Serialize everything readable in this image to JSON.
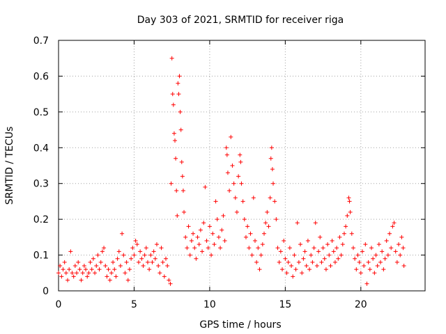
{
  "chart_data": {
    "type": "scatter",
    "title": "Day 303 of 2021, SRMTID for receiver riga",
    "xlabel": "GPS time / hours",
    "ylabel": "SRMTID / TECUs",
    "xlim": [
      0,
      24.25
    ],
    "ylim": [
      0,
      0.7
    ],
    "xticks": [
      "0",
      "5",
      "10",
      "15",
      "20"
    ],
    "yticks": [
      "0",
      "0.1",
      "0.2",
      "0.3",
      "0.4",
      "0.5",
      "0.6",
      "0.7"
    ],
    "grid": true,
    "marker": "+",
    "color": "#ff0000",
    "series": [
      {
        "name": "SRMTID",
        "points": [
          [
            0.0,
            0.05
          ],
          [
            0.1,
            0.07
          ],
          [
            0.2,
            0.04
          ],
          [
            0.3,
            0.06
          ],
          [
            0.4,
            0.08
          ],
          [
            0.5,
            0.05
          ],
          [
            0.6,
            0.03
          ],
          [
            0.7,
            0.06
          ],
          [
            0.8,
            0.11
          ],
          [
            0.9,
            0.05
          ],
          [
            1.0,
            0.04
          ],
          [
            1.1,
            0.07
          ],
          [
            1.2,
            0.05
          ],
          [
            1.3,
            0.08
          ],
          [
            1.4,
            0.06
          ],
          [
            1.5,
            0.03
          ],
          [
            1.6,
            0.05
          ],
          [
            1.7,
            0.07
          ],
          [
            1.8,
            0.06
          ],
          [
            1.9,
            0.04
          ],
          [
            2.0,
            0.05
          ],
          [
            2.1,
            0.08
          ],
          [
            2.2,
            0.06
          ],
          [
            2.3,
            0.09
          ],
          [
            2.4,
            0.05
          ],
          [
            2.5,
            0.07
          ],
          [
            2.6,
            0.1
          ],
          [
            2.7,
            0.06
          ],
          [
            2.8,
            0.08
          ],
          [
            2.9,
            0.11
          ],
          [
            3.0,
            0.12
          ],
          [
            3.1,
            0.07
          ],
          [
            3.2,
            0.04
          ],
          [
            3.3,
            0.06
          ],
          [
            3.4,
            0.03
          ],
          [
            3.5,
            0.05
          ],
          [
            3.6,
            0.08
          ],
          [
            3.7,
            0.06
          ],
          [
            3.8,
            0.04
          ],
          [
            3.9,
            0.09
          ],
          [
            4.0,
            0.11
          ],
          [
            4.1,
            0.07
          ],
          [
            4.2,
            0.16
          ],
          [
            4.3,
            0.1
          ],
          [
            4.4,
            0.05
          ],
          [
            4.5,
            0.08
          ],
          [
            4.6,
            0.03
          ],
          [
            4.7,
            0.06
          ],
          [
            4.8,
            0.09
          ],
          [
            4.9,
            0.12
          ],
          [
            5.0,
            0.1
          ],
          [
            5.1,
            0.14
          ],
          [
            5.2,
            0.13
          ],
          [
            5.3,
            0.08
          ],
          [
            5.4,
            0.11
          ],
          [
            5.5,
            0.09
          ],
          [
            5.6,
            0.07
          ],
          [
            5.7,
            0.1
          ],
          [
            5.8,
            0.12
          ],
          [
            5.9,
            0.08
          ],
          [
            6.0,
            0.06
          ],
          [
            6.1,
            0.1
          ],
          [
            6.2,
            0.08
          ],
          [
            6.3,
            0.11
          ],
          [
            6.4,
            0.09
          ],
          [
            6.5,
            0.13
          ],
          [
            6.6,
            0.07
          ],
          [
            6.7,
            0.05
          ],
          [
            6.8,
            0.12
          ],
          [
            6.9,
            0.08
          ],
          [
            7.0,
            0.04
          ],
          [
            7.1,
            0.09
          ],
          [
            7.2,
            0.07
          ],
          [
            7.3,
            0.03
          ],
          [
            7.4,
            0.02
          ],
          [
            7.45,
            0.3
          ],
          [
            7.5,
            0.65
          ],
          [
            7.55,
            0.55
          ],
          [
            7.6,
            0.52
          ],
          [
            7.65,
            0.44
          ],
          [
            7.7,
            0.42
          ],
          [
            7.75,
            0.37
          ],
          [
            7.8,
            0.28
          ],
          [
            7.85,
            0.21
          ],
          [
            7.9,
            0.58
          ],
          [
            7.95,
            0.55
          ],
          [
            8.0,
            0.6
          ],
          [
            8.05,
            0.5
          ],
          [
            8.1,
            0.45
          ],
          [
            8.15,
            0.36
          ],
          [
            8.2,
            0.32
          ],
          [
            8.25,
            0.28
          ],
          [
            8.3,
            0.22
          ],
          [
            8.4,
            0.15
          ],
          [
            8.5,
            0.12
          ],
          [
            8.6,
            0.18
          ],
          [
            8.7,
            0.1
          ],
          [
            8.8,
            0.14
          ],
          [
            8.9,
            0.16
          ],
          [
            9.0,
            0.12
          ],
          [
            9.1,
            0.09
          ],
          [
            9.2,
            0.15
          ],
          [
            9.3,
            0.13
          ],
          [
            9.4,
            0.17
          ],
          [
            9.5,
            0.11
          ],
          [
            9.6,
            0.19
          ],
          [
            9.7,
            0.29
          ],
          [
            9.8,
            0.14
          ],
          [
            9.9,
            0.12
          ],
          [
            10.0,
            0.18
          ],
          [
            10.1,
            0.1
          ],
          [
            10.2,
            0.16
          ],
          [
            10.3,
            0.13
          ],
          [
            10.4,
            0.25
          ],
          [
            10.5,
            0.2
          ],
          [
            10.6,
            0.15
          ],
          [
            10.7,
            0.12
          ],
          [
            10.8,
            0.17
          ],
          [
            10.9,
            0.21
          ],
          [
            11.0,
            0.14
          ],
          [
            11.1,
            0.4
          ],
          [
            11.15,
            0.38
          ],
          [
            11.2,
            0.33
          ],
          [
            11.3,
            0.28
          ],
          [
            11.4,
            0.43
          ],
          [
            11.5,
            0.35
          ],
          [
            11.6,
            0.3
          ],
          [
            11.7,
            0.26
          ],
          [
            11.8,
            0.22
          ],
          [
            11.9,
            0.32
          ],
          [
            12.0,
            0.38
          ],
          [
            12.05,
            0.36
          ],
          [
            12.1,
            0.3
          ],
          [
            12.2,
            0.25
          ],
          [
            12.3,
            0.2
          ],
          [
            12.4,
            0.15
          ],
          [
            12.5,
            0.18
          ],
          [
            12.6,
            0.12
          ],
          [
            12.7,
            0.16
          ],
          [
            12.8,
            0.1
          ],
          [
            12.9,
            0.26
          ],
          [
            13.0,
            0.14
          ],
          [
            13.1,
            0.08
          ],
          [
            13.2,
            0.12
          ],
          [
            13.3,
            0.06
          ],
          [
            13.4,
            0.1
          ],
          [
            13.5,
            0.13
          ],
          [
            13.6,
            0.16
          ],
          [
            13.7,
            0.19
          ],
          [
            13.8,
            0.22
          ],
          [
            13.9,
            0.18
          ],
          [
            14.0,
            0.26
          ],
          [
            14.05,
            0.37
          ],
          [
            14.1,
            0.4
          ],
          [
            14.15,
            0.34
          ],
          [
            14.2,
            0.3
          ],
          [
            14.3,
            0.25
          ],
          [
            14.4,
            0.2
          ],
          [
            14.5,
            0.12
          ],
          [
            14.6,
            0.08
          ],
          [
            14.7,
            0.11
          ],
          [
            14.8,
            0.06
          ],
          [
            14.9,
            0.14
          ],
          [
            15.0,
            0.09
          ],
          [
            15.1,
            0.05
          ],
          [
            15.2,
            0.08
          ],
          [
            15.3,
            0.12
          ],
          [
            15.4,
            0.07
          ],
          [
            15.5,
            0.04
          ],
          [
            15.6,
            0.1
          ],
          [
            15.7,
            0.06
          ],
          [
            15.8,
            0.19
          ],
          [
            15.9,
            0.08
          ],
          [
            16.0,
            0.13
          ],
          [
            16.1,
            0.05
          ],
          [
            16.2,
            0.09
          ],
          [
            16.3,
            0.11
          ],
          [
            16.4,
            0.07
          ],
          [
            16.5,
            0.14
          ],
          [
            16.6,
            0.06
          ],
          [
            16.7,
            0.1
          ],
          [
            16.8,
            0.08
          ],
          [
            16.9,
            0.12
          ],
          [
            17.0,
            0.19
          ],
          [
            17.1,
            0.07
          ],
          [
            17.2,
            0.11
          ],
          [
            17.3,
            0.15
          ],
          [
            17.4,
            0.08
          ],
          [
            17.5,
            0.12
          ],
          [
            17.6,
            0.09
          ],
          [
            17.7,
            0.06
          ],
          [
            17.8,
            0.13
          ],
          [
            17.9,
            0.1
          ],
          [
            18.0,
            0.07
          ],
          [
            18.1,
            0.14
          ],
          [
            18.2,
            0.11
          ],
          [
            18.3,
            0.08
          ],
          [
            18.4,
            0.12
          ],
          [
            18.5,
            0.09
          ],
          [
            18.6,
            0.15
          ],
          [
            18.7,
            0.1
          ],
          [
            18.8,
            0.13
          ],
          [
            18.9,
            0.16
          ],
          [
            19.0,
            0.18
          ],
          [
            19.1,
            0.21
          ],
          [
            19.2,
            0.26
          ],
          [
            19.25,
            0.25
          ],
          [
            19.3,
            0.22
          ],
          [
            19.4,
            0.16
          ],
          [
            19.5,
            0.12
          ],
          [
            19.6,
            0.09
          ],
          [
            19.7,
            0.06
          ],
          [
            19.8,
            0.1
          ],
          [
            19.9,
            0.08
          ],
          [
            20.0,
            0.05
          ],
          [
            20.1,
            0.11
          ],
          [
            20.2,
            0.07
          ],
          [
            20.3,
            0.13
          ],
          [
            20.4,
            0.02
          ],
          [
            20.5,
            0.08
          ],
          [
            20.6,
            0.06
          ],
          [
            20.7,
            0.12
          ],
          [
            20.8,
            0.09
          ],
          [
            20.9,
            0.05
          ],
          [
            21.0,
            0.1
          ],
          [
            21.1,
            0.07
          ],
          [
            21.2,
            0.13
          ],
          [
            21.3,
            0.08
          ],
          [
            21.4,
            0.11
          ],
          [
            21.5,
            0.06
          ],
          [
            21.6,
            0.09
          ],
          [
            21.7,
            0.14
          ],
          [
            21.8,
            0.1
          ],
          [
            21.9,
            0.16
          ],
          [
            22.0,
            0.12
          ],
          [
            22.1,
            0.18
          ],
          [
            22.2,
            0.19
          ],
          [
            22.3,
            0.11
          ],
          [
            22.4,
            0.08
          ],
          [
            22.5,
            0.13
          ],
          [
            22.6,
            0.1
          ],
          [
            22.7,
            0.15
          ],
          [
            22.8,
            0.12
          ],
          [
            22.85,
            0.07
          ]
        ]
      }
    ]
  }
}
